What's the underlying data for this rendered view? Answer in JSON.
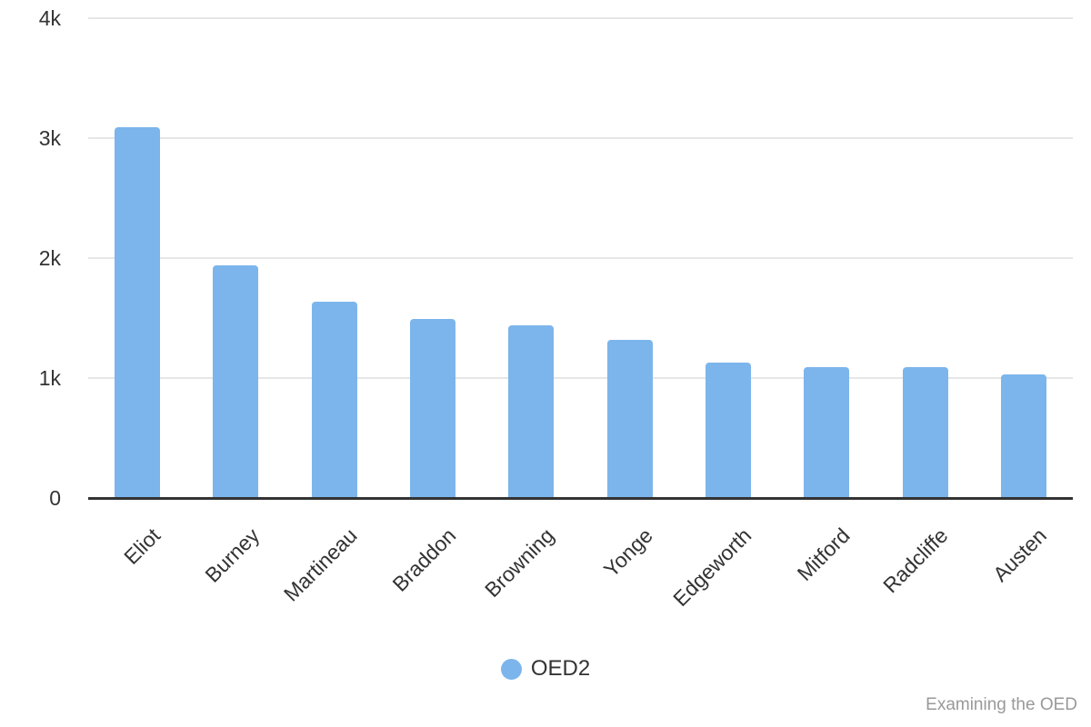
{
  "chart_data": {
    "type": "bar",
    "title": "",
    "categories": [
      "Eliot",
      "Burney",
      "Martineau",
      "Braddon",
      "Browning",
      "Yonge",
      "Edgeworth",
      "Mitford",
      "Radcliffe",
      "Austen"
    ],
    "series": [
      {
        "name": "OED2",
        "color": "#7cb5ec",
        "values": [
          3090,
          1940,
          1640,
          1490,
          1440,
          1320,
          1130,
          1090,
          1090,
          1030
        ]
      }
    ],
    "xlabel": "",
    "ylabel": "",
    "ylim": [
      0,
      4000
    ],
    "yticks": [
      {
        "value": 0,
        "label": "0"
      },
      {
        "value": 1000,
        "label": "1k"
      },
      {
        "value": 2000,
        "label": "2k"
      },
      {
        "value": 3000,
        "label": "3k"
      },
      {
        "value": 4000,
        "label": "4k"
      }
    ],
    "grid": true,
    "legend": {
      "position": "bottom",
      "items": [
        {
          "label": "OED2",
          "color": "#7cb5ec"
        }
      ]
    }
  },
  "colors": {
    "bar": "#7cb5ec",
    "gridline": "#e6e6e6",
    "axis_line": "#333333",
    "label_text": "#333333",
    "credits_text": "#999999",
    "background": "#ffffff"
  },
  "credits": {
    "label": "Examining the OED"
  }
}
